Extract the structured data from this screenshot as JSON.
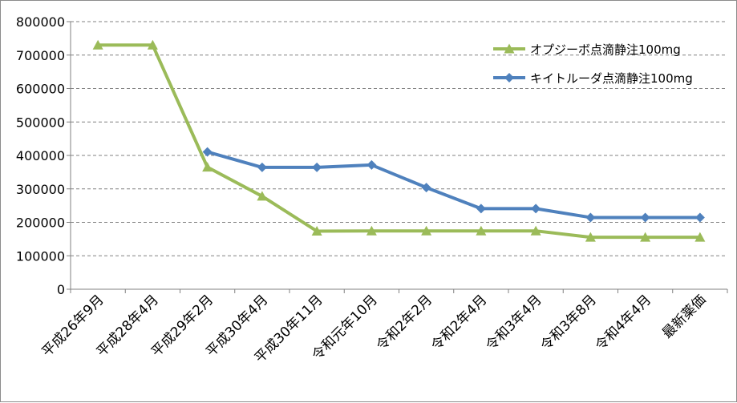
{
  "chart_data": {
    "type": "line",
    "title": "",
    "xlabel": "",
    "ylabel": "",
    "ylim": [
      0,
      800000
    ],
    "yticks": [
      0,
      100000,
      200000,
      300000,
      400000,
      500000,
      600000,
      700000,
      800000
    ],
    "ytick_labels": [
      "0",
      "100000",
      "200000",
      "300000",
      "400000",
      "500000",
      "600000",
      "700000",
      "800000"
    ],
    "grid": "horizontal dashed",
    "legend_position": "top-right",
    "categories": [
      "平成26年9月",
      "平成28年4月",
      "平成29年2月",
      "平成30年4月",
      "平成30年11月",
      "令和元年10月",
      "令和2年2月",
      "令和2年4月",
      "令和3年4月",
      "令和3年8月",
      "令和4年4月",
      "最新薬価"
    ],
    "series": [
      {
        "name": "オプジーボ点滴静注100mg",
        "color": "#9bbb59",
        "marker": "triangle",
        "values": [
          729849,
          729849,
          364925,
          278029,
          173768,
          174374,
          174374,
          174374,
          174374,
          155390,
          155390,
          155390
        ]
      },
      {
        "name": "キイトルーダ点滴静注100mg",
        "color": "#4f81bd",
        "marker": "diamond",
        "values": [
          null,
          null,
          410541,
          364269,
          364269,
          371425,
          304000,
          241000,
          241000,
          214498,
          214498,
          214498
        ]
      }
    ]
  }
}
